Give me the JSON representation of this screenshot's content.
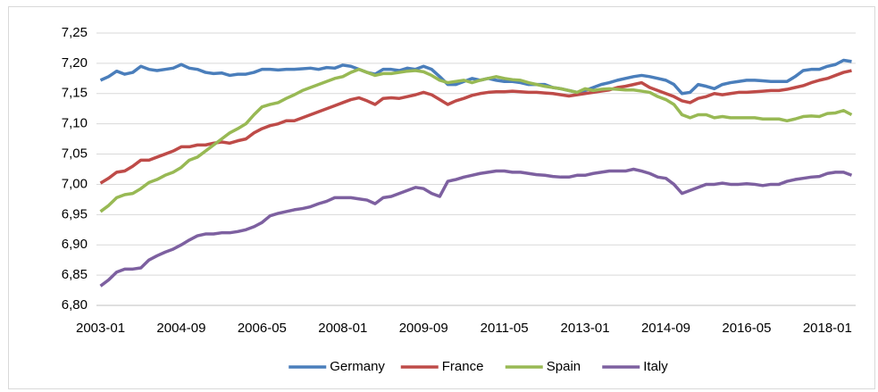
{
  "chart_data": {
    "type": "line",
    "categories": [
      "2003-01",
      null,
      null,
      null,
      null,
      null,
      null,
      null,
      null,
      null,
      "2004-09",
      null,
      null,
      null,
      null,
      null,
      null,
      null,
      null,
      null,
      "2006-05",
      null,
      null,
      null,
      null,
      null,
      null,
      null,
      null,
      null,
      "2008-01",
      null,
      null,
      null,
      null,
      null,
      null,
      null,
      null,
      null,
      "2009-09",
      null,
      null,
      null,
      null,
      null,
      null,
      null,
      null,
      null,
      "2011-05",
      null,
      null,
      null,
      null,
      null,
      null,
      null,
      null,
      null,
      "2013-01",
      null,
      null,
      null,
      null,
      null,
      null,
      null,
      null,
      null,
      "2014-09",
      null,
      null,
      null,
      null,
      null,
      null,
      null,
      null,
      null,
      "2016-05",
      null,
      null,
      null,
      null,
      null,
      null,
      null,
      null,
      null,
      "2018-01",
      null,
      null,
      null
    ],
    "series": [
      {
        "name": "Germany",
        "color": "#4a7ebb",
        "values": [
          7.172,
          7.178,
          7.187,
          7.182,
          7.185,
          7.195,
          7.19,
          7.188,
          7.19,
          7.192,
          7.198,
          7.192,
          7.19,
          7.185,
          7.183,
          7.184,
          7.18,
          7.182,
          7.182,
          7.185,
          7.19,
          7.19,
          7.189,
          7.19,
          7.19,
          7.191,
          7.192,
          7.19,
          7.193,
          7.192,
          7.197,
          7.195,
          7.19,
          7.185,
          7.182,
          7.19,
          7.19,
          7.188,
          7.192,
          7.19,
          7.195,
          7.19,
          7.178,
          7.165,
          7.165,
          7.17,
          7.175,
          7.172,
          7.175,
          7.172,
          7.17,
          7.17,
          7.168,
          7.165,
          7.165,
          7.165,
          7.16,
          7.158,
          7.155,
          7.152,
          7.155,
          7.16,
          7.165,
          7.168,
          7.172,
          7.175,
          7.178,
          7.18,
          7.178,
          7.175,
          7.172,
          7.165,
          7.15,
          7.152,
          7.165,
          7.162,
          7.158,
          7.165,
          7.168,
          7.17,
          7.172,
          7.172,
          7.171,
          7.17,
          7.17,
          7.17,
          7.178,
          7.188,
          7.19,
          7.19,
          7.195,
          7.198,
          7.205,
          7.203
        ]
      },
      {
        "name": "France",
        "color": "#be4b48",
        "values": [
          7.002,
          7.01,
          7.02,
          7.022,
          7.03,
          7.04,
          7.04,
          7.045,
          7.05,
          7.055,
          7.062,
          7.062,
          7.065,
          7.065,
          7.068,
          7.07,
          7.068,
          7.072,
          7.075,
          7.085,
          7.092,
          7.097,
          7.1,
          7.105,
          7.105,
          7.11,
          7.115,
          7.12,
          7.125,
          7.13,
          7.135,
          7.14,
          7.143,
          7.138,
          7.132,
          7.142,
          7.143,
          7.142,
          7.145,
          7.148,
          7.152,
          7.148,
          7.14,
          7.132,
          7.138,
          7.142,
          7.147,
          7.15,
          7.152,
          7.153,
          7.153,
          7.154,
          7.153,
          7.152,
          7.152,
          7.151,
          7.15,
          7.148,
          7.146,
          7.148,
          7.15,
          7.152,
          7.154,
          7.156,
          7.16,
          7.162,
          7.165,
          7.168,
          7.16,
          7.155,
          7.15,
          7.145,
          7.138,
          7.135,
          7.142,
          7.145,
          7.15,
          7.148,
          7.15,
          7.152,
          7.152,
          7.153,
          7.154,
          7.155,
          7.155,
          7.157,
          7.16,
          7.163,
          7.168,
          7.172,
          7.175,
          7.18,
          7.185,
          7.188
        ]
      },
      {
        "name": "Spain",
        "color": "#98b954",
        "values": [
          6.955,
          6.965,
          6.978,
          6.983,
          6.985,
          6.993,
          7.003,
          7.008,
          7.015,
          7.02,
          7.028,
          7.04,
          7.045,
          7.055,
          7.065,
          7.075,
          7.085,
          7.092,
          7.1,
          7.115,
          7.128,
          7.132,
          7.135,
          7.142,
          7.148,
          7.155,
          7.16,
          7.165,
          7.17,
          7.175,
          7.178,
          7.185,
          7.19,
          7.185,
          7.18,
          7.183,
          7.183,
          7.185,
          7.187,
          7.188,
          7.186,
          7.18,
          7.172,
          7.168,
          7.17,
          7.172,
          7.168,
          7.172,
          7.175,
          7.178,
          7.175,
          7.173,
          7.172,
          7.168,
          7.165,
          7.162,
          7.16,
          7.158,
          7.155,
          7.152,
          7.158,
          7.155,
          7.157,
          7.158,
          7.157,
          7.156,
          7.156,
          7.154,
          7.152,
          7.145,
          7.14,
          7.132,
          7.115,
          7.11,
          7.115,
          7.115,
          7.11,
          7.112,
          7.11,
          7.11,
          7.11,
          7.11,
          7.108,
          7.108,
          7.108,
          7.105,
          7.108,
          7.112,
          7.113,
          7.112,
          7.117,
          7.118,
          7.122,
          7.115
        ]
      },
      {
        "name": "Italy",
        "color": "#7d60a0",
        "values": [
          6.832,
          6.842,
          6.855,
          6.86,
          6.86,
          6.862,
          6.875,
          6.882,
          6.888,
          6.893,
          6.9,
          6.908,
          6.915,
          6.918,
          6.918,
          6.92,
          6.92,
          6.922,
          6.925,
          6.93,
          6.937,
          6.948,
          6.952,
          6.955,
          6.958,
          6.96,
          6.963,
          6.968,
          6.972,
          6.978,
          6.978,
          6.978,
          6.976,
          6.974,
          6.968,
          6.978,
          6.98,
          6.985,
          6.99,
          6.995,
          6.993,
          6.985,
          6.98,
          7.005,
          7.008,
          7.012,
          7.015,
          7.018,
          7.02,
          7.022,
          7.022,
          7.02,
          7.02,
          7.018,
          7.016,
          7.015,
          7.013,
          7.012,
          7.012,
          7.015,
          7.015,
          7.018,
          7.02,
          7.022,
          7.022,
          7.022,
          7.025,
          7.022,
          7.018,
          7.012,
          7.01,
          7.0,
          6.985,
          6.99,
          6.995,
          7.0,
          7.0,
          7.002,
          7.0,
          7.0,
          7.001,
          7.0,
          6.998,
          7.0,
          7.0,
          7.005,
          7.008,
          7.01,
          7.012,
          7.013,
          7.018,
          7.02,
          7.02,
          7.015
        ]
      }
    ],
    "ylim": [
      6.8,
      7.25
    ],
    "yticks": [
      {
        "value": 6.8,
        "label": "6,80"
      },
      {
        "value": 6.85,
        "label": "6,85"
      },
      {
        "value": 6.9,
        "label": "6,90"
      },
      {
        "value": 6.95,
        "label": "6,95"
      },
      {
        "value": 7.0,
        "label": "7,00"
      },
      {
        "value": 7.05,
        "label": "7,05"
      },
      {
        "value": 7.1,
        "label": "7,10"
      },
      {
        "value": 7.15,
        "label": "7,15"
      },
      {
        "value": 7.2,
        "label": "7,20"
      },
      {
        "value": 7.25,
        "label": "7,25"
      }
    ],
    "grid": true,
    "legend": "bottom"
  }
}
